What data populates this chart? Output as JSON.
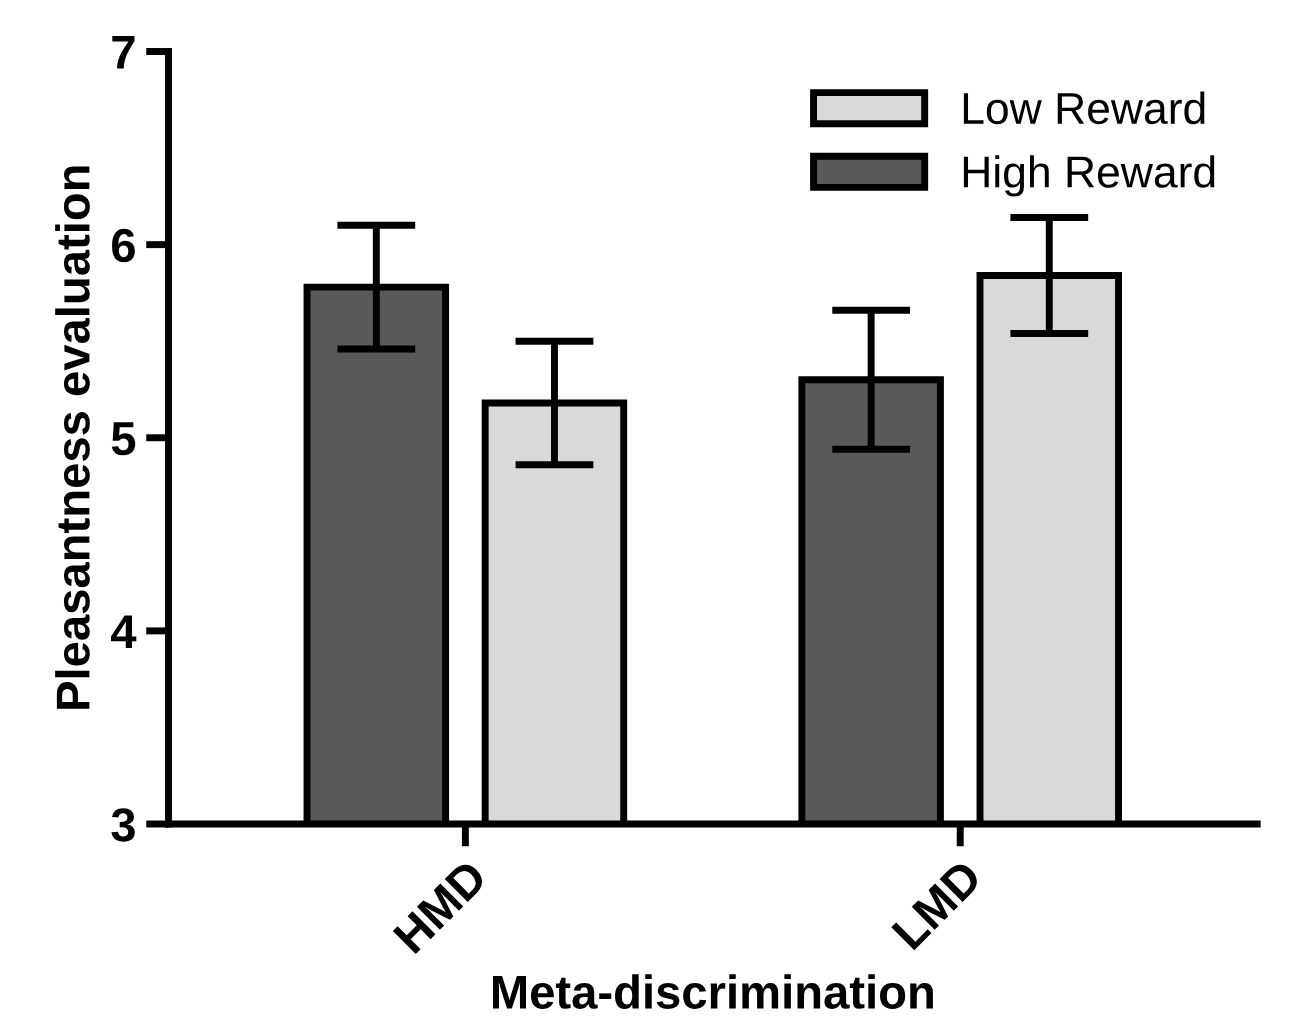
{
  "chart_data": {
    "type": "bar",
    "xlabel": "Meta-discrimination",
    "ylabel": "Pleasantness evaluation",
    "categories": [
      "HMD",
      "LMD"
    ],
    "series": [
      {
        "name": "High Reward",
        "color": "#595959",
        "values": [
          5.78,
          5.3
        ],
        "errors": [
          0.32,
          0.36
        ]
      },
      {
        "name": "Low Reward",
        "color": "#d9d9d9",
        "values": [
          5.18,
          5.84
        ],
        "errors": [
          0.32,
          0.3
        ]
      }
    ],
    "ylim": [
      3,
      7
    ],
    "yticks": [
      3,
      4,
      5,
      6,
      7
    ],
    "grid": false,
    "legend": "top right"
  }
}
